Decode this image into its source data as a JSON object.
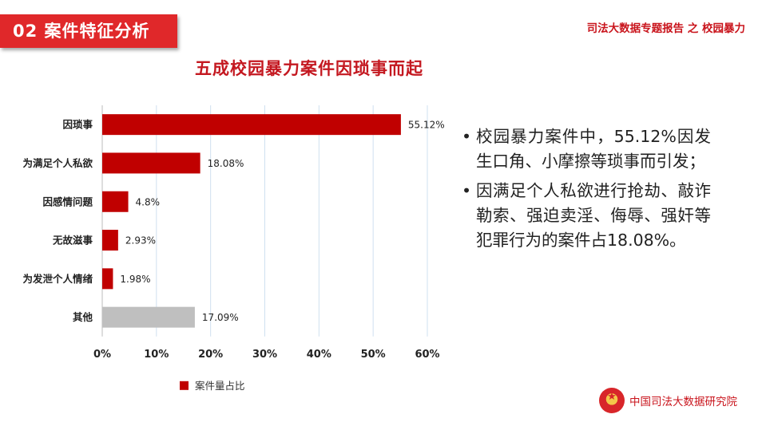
{
  "header": {
    "section_tag": "02  案件特征分析",
    "report_title": "司法大数据专题报告 之 校园暴力"
  },
  "chart_title": "五成校园暴力案件因琐事而起",
  "chart_data": {
    "type": "bar",
    "orientation": "horizontal",
    "categories": [
      "因琐事",
      "为满足个人私欲",
      "因感情问题",
      "无故滋事",
      "为发泄个人情绪",
      "其他"
    ],
    "series": [
      {
        "name": "案件量占比",
        "values": [
          55.12,
          18.08,
          4.8,
          2.93,
          1.98,
          17.09
        ]
      }
    ],
    "data_labels": [
      "55.12%",
      "18.08%",
      "4.8%",
      "2.93%",
      "1.98%",
      "17.09%"
    ],
    "xlim": [
      0,
      60
    ],
    "xticks": [
      0,
      10,
      20,
      30,
      40,
      50,
      60
    ],
    "xtick_labels": [
      "0%",
      "10%",
      "20%",
      "30%",
      "40%",
      "50%",
      "60%"
    ],
    "bar_colors": [
      "#c00000",
      "#c00000",
      "#c00000",
      "#c00000",
      "#c00000",
      "#bfbfbf"
    ],
    "legend": {
      "label": "案件量占比",
      "color": "#c00000",
      "position": "bottom"
    },
    "grid": true
  },
  "bullets": [
    "校园暴力案件中，55.12%因发生口角、小摩擦等琐事而引发；",
    "因满足个人私欲进行抢劫、敲诈勒索、强迫卖淫、侮辱、强奸等犯罪行为的案件占18.08%。"
  ],
  "bullet_symbol": "•",
  "footer": {
    "org": "中国司法大数据研究院"
  },
  "colors": {
    "accent": "#e0282a",
    "title_red": "#c41820",
    "bar_red": "#c00000",
    "bar_gray": "#bfbfbf"
  }
}
